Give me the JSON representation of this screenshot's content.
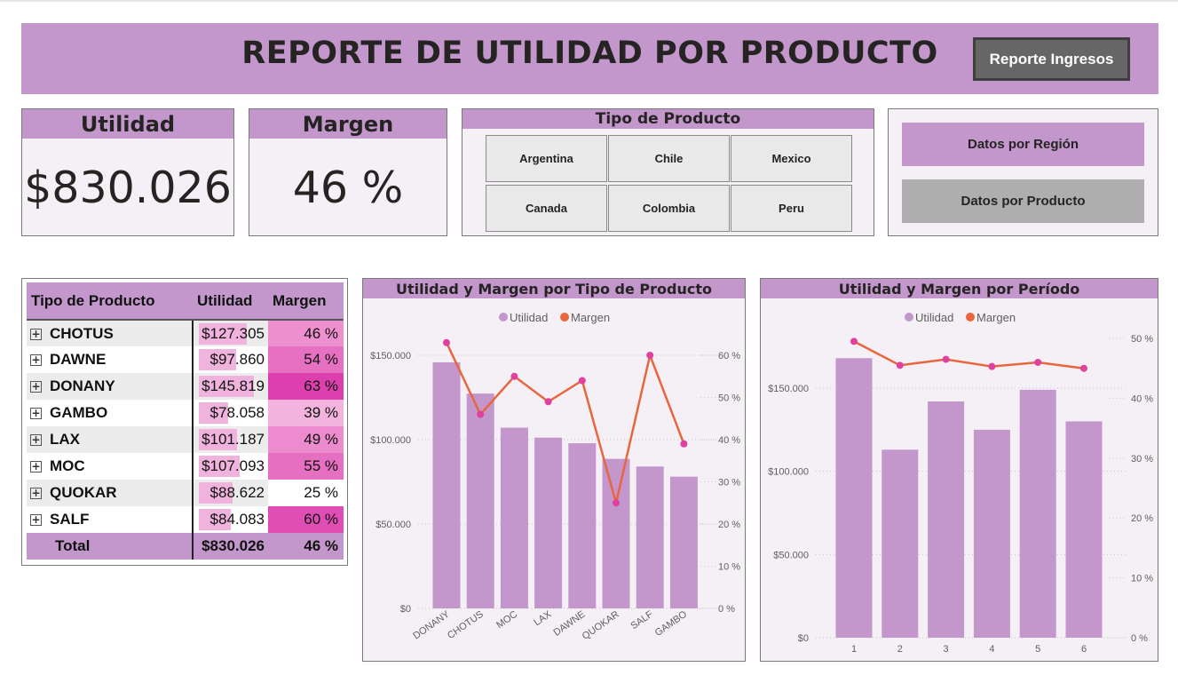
{
  "header": {
    "title": "REPORTE DE UTILIDAD POR PRODUCTO",
    "button_label": "Reporte Ingresos"
  },
  "kpis": {
    "utilidad": {
      "label": "Utilidad",
      "value": "$830.026"
    },
    "margen": {
      "label": "Margen",
      "value": "46 %"
    }
  },
  "slicer": {
    "title": "Tipo de Producto",
    "options": [
      "Argentina",
      "Chile",
      "Mexico",
      "Canada",
      "Colombia",
      "Peru"
    ]
  },
  "nav": {
    "region_label": "Datos por Región",
    "producto_label": "Datos por Producto",
    "region_color": "#c397cc",
    "producto_color": "#aeaeae"
  },
  "table": {
    "headers": [
      "Tipo de Producto",
      "Utilidad",
      "Margen"
    ],
    "rows": [
      {
        "name": "CHOTUS",
        "utilidad": "$127.305",
        "margen": "46 %",
        "util_value": 127305,
        "margin_color": "#ee8fcf"
      },
      {
        "name": "DAWNE",
        "utilidad": "$97.860",
        "margen": "54 %",
        "util_value": 97860,
        "margin_color": "#e671c2"
      },
      {
        "name": "DONANY",
        "utilidad": "$145.819",
        "margen": "63 %",
        "util_value": 145819,
        "margin_color": "#de3fae"
      },
      {
        "name": "GAMBO",
        "utilidad": "$78.058",
        "margen": "39 %",
        "util_value": 78058,
        "margin_color": "#f3b3df"
      },
      {
        "name": "LAX",
        "utilidad": "$101.187",
        "margen": "49 %",
        "util_value": 101187,
        "margin_color": "#ec8bcd"
      },
      {
        "name": "MOC",
        "utilidad": "$107.093",
        "margen": "55 %",
        "util_value": 107093,
        "margin_color": "#e66fc1"
      },
      {
        "name": "QUOKAR",
        "utilidad": "$88.622",
        "margen": "25 %",
        "util_value": 88622,
        "margin_color": "#ffffff"
      },
      {
        "name": "SALF",
        "utilidad": "$84.083",
        "margen": "60 %",
        "util_value": 84083,
        "margin_color": "#e04db5"
      }
    ],
    "total": {
      "label": "Total",
      "utilidad": "$830.026",
      "margen": "46 %"
    }
  },
  "chart_data": [
    {
      "type": "bar",
      "title": "Utilidad y Margen por Tipo de Producto",
      "categories": [
        "DONANY",
        "CHOTUS",
        "MOC",
        "LAX",
        "DAWNE",
        "QUOKAR",
        "SALF",
        "GAMBO"
      ],
      "series": [
        {
          "name": "Utilidad",
          "type": "bar",
          "axis": "left",
          "color": "#c397cc",
          "values": [
            145819,
            127305,
            107093,
            101187,
            97860,
            88622,
            84083,
            78058
          ]
        },
        {
          "name": "Margen",
          "type": "line",
          "axis": "right",
          "color": "#e8663d",
          "marker_color": "#e0409e",
          "values": [
            63,
            46,
            55,
            49,
            54,
            25,
            60,
            39
          ]
        }
      ],
      "y_left": {
        "min": 0,
        "max": 150000,
        "ticks": [
          0,
          50000,
          100000,
          150000
        ],
        "tick_labels": [
          "$0",
          "$50.000",
          "$100.000",
          "$150.000"
        ]
      },
      "y_right": {
        "min": 0,
        "max": 60,
        "ticks": [
          0,
          10,
          20,
          30,
          40,
          50,
          60
        ],
        "tick_labels": [
          "0 %",
          "10 %",
          "20 %",
          "30 %",
          "40 %",
          "50 %",
          "60 %"
        ]
      },
      "legend": [
        "Utilidad",
        "Margen"
      ],
      "legend_position": "top-center",
      "grid": true
    },
    {
      "type": "bar",
      "title": "Utilidad y Margen por Período",
      "categories": [
        "1",
        "2",
        "3",
        "4",
        "5",
        "6"
      ],
      "series": [
        {
          "name": "Utilidad",
          "type": "bar",
          "axis": "left",
          "color": "#c397cc",
          "values": [
            168000,
            113000,
            142000,
            125000,
            149000,
            130000
          ]
        },
        {
          "name": "Margen",
          "type": "line",
          "axis": "right",
          "color": "#e8663d",
          "marker_color": "#e0409e",
          "values": [
            49.5,
            45.5,
            46.5,
            45.3,
            46.0,
            45.0
          ]
        }
      ],
      "y_left": {
        "min": 0,
        "max": 150000,
        "ticks": [
          0,
          50000,
          100000,
          150000
        ],
        "tick_labels": [
          "$0",
          "$50.000",
          "$100.000",
          "$150.000"
        ]
      },
      "y_right": {
        "min": 0,
        "max": 50,
        "ticks": [
          0,
          10,
          20,
          30,
          40,
          50
        ],
        "tick_labels": [
          "0 %",
          "10 %",
          "20 %",
          "30 %",
          "40 %",
          "50 %"
        ]
      },
      "legend": [
        "Utilidad",
        "Margen"
      ],
      "legend_position": "top-center",
      "grid": true
    }
  ]
}
